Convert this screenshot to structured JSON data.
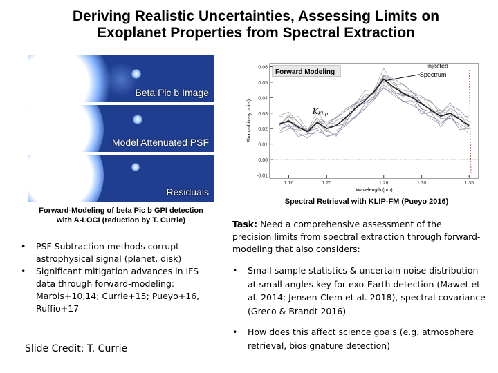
{
  "title": {
    "line1": "Deriving Realistic Uncertainties, Assessing Limits on",
    "line2": "Exoplanet Properties from Spectral Extraction"
  },
  "images": {
    "panels": [
      "Beta Pic b Image",
      "Model Attenuated PSF",
      "Residuals"
    ],
    "caption_line1": "Forward-Modeling of beta Pic b GPI detection",
    "caption_line2": "with A-LOCI (reduction by T. Currie)"
  },
  "left_bullets": [
    "PSF Subtraction methods corrupt astrophysical signal (planet, disk)",
    "Significant mitigation advances in IFS data through forward-modeling: Marois+10,14; Currie+15; Pueyo+16, Ruffio+17"
  ],
  "bullet_char": "•",
  "credit": "Slide Credit: T. Currie",
  "chart_data": {
    "type": "line",
    "title": "Forward Modeling",
    "xlabel": "Wavelength (µm)",
    "ylabel": "Flux (arbitrary units)",
    "x_ticks": [
      "1.16",
      "1.20",
      "1.26",
      "1.30",
      "1.35"
    ],
    "y_ticks": [
      "0.06",
      "0.05",
      "0.04",
      "0.03",
      "0.02",
      "0.01",
      "0.00",
      "-0.01"
    ],
    "xlim": [
      1.14,
      1.36
    ],
    "ylim": [
      -0.012,
      0.062
    ],
    "x": [
      1.15,
      1.16,
      1.17,
      1.18,
      1.19,
      1.2,
      1.21,
      1.22,
      1.23,
      1.24,
      1.25,
      1.26,
      1.27,
      1.28,
      1.29,
      1.3,
      1.31,
      1.32,
      1.33,
      1.34,
      1.35
    ],
    "injected": [
      0.023,
      0.025,
      0.021,
      0.018,
      0.024,
      0.02,
      0.022,
      0.027,
      0.033,
      0.038,
      0.044,
      0.052,
      0.047,
      0.043,
      0.04,
      0.036,
      0.032,
      0.028,
      0.03,
      0.026,
      0.022
    ],
    "annotations": {
      "injected": "Injected\nSpectrum",
      "kklip": "K",
      "kklip_sub": "Klip"
    },
    "caption": "Spectral Retrieval with KLIP-FM (Pueyo 2016)"
  },
  "task": {
    "label": "Task:",
    "text": " Need a comprehensive assessment of the precision limits from spectral extraction through forward-modeling that also considers:"
  },
  "right_bullets": [
    "Small sample statistics & uncertain noise distribution at small angles key for exo-Earth detection (Mawet et al. 2014; Jensen-Clem et al. 2018), spectral covariance (Greco & Brandt 2016)",
    "How does this affect science goals (e.g. atmosphere retrieval, biosignature detection)"
  ],
  "colors": {
    "panel_bg": "#1f3e8f",
    "injected_line": "#222222",
    "trial_lines": "#8a8a8a",
    "series_red": "#c0392b"
  }
}
